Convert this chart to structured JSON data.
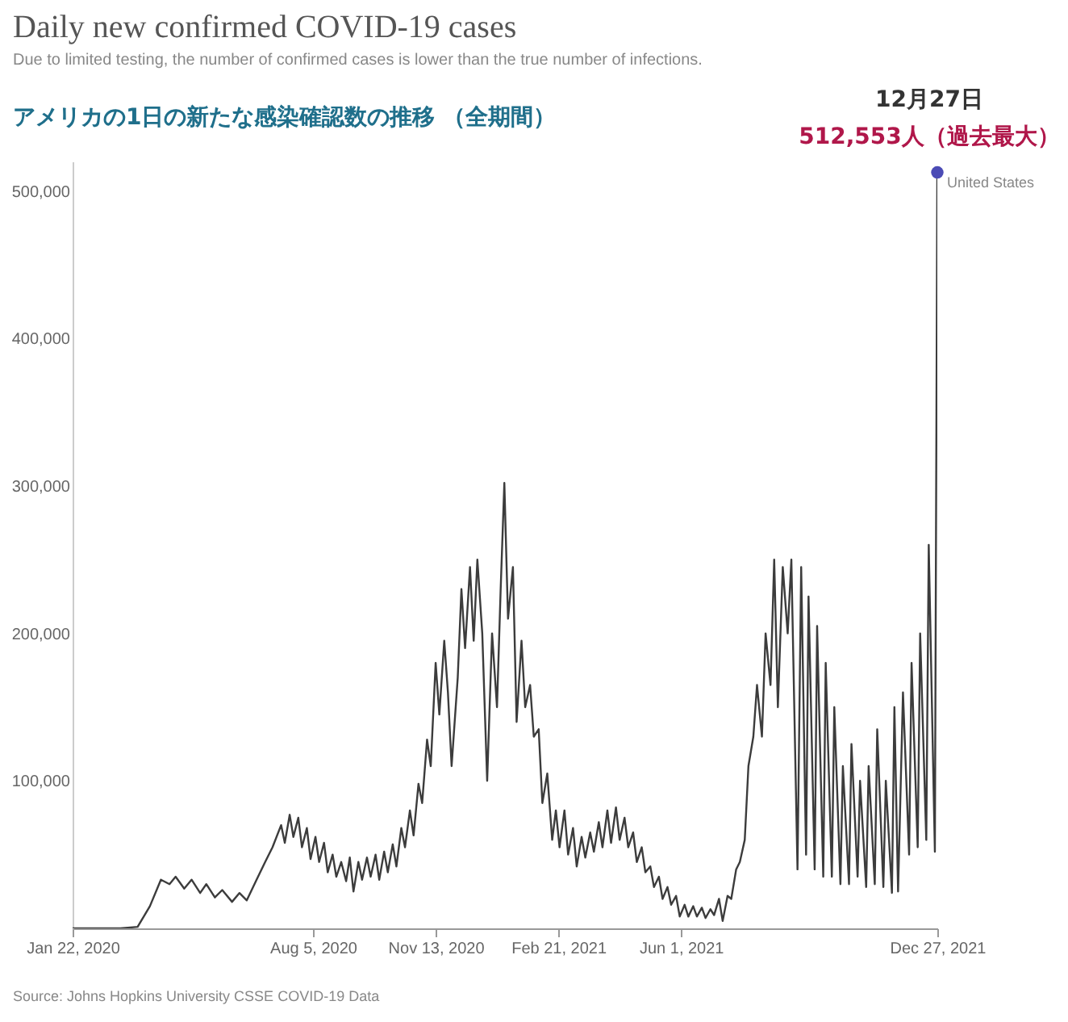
{
  "chart_data": {
    "type": "line",
    "title": "Daily new confirmed COVID-19 cases",
    "subtitle": "Due to limited testing, the number of confirmed cases is lower than the true number of infections.",
    "annotations": [
      "アメリカの1日の新たな感染確認数の推移 （全期間）",
      {
        "text": "12月27日",
        "x": "2021-12-27",
        "y": 512553
      },
      {
        "text": "512,553人（過去最大）",
        "x": "2021-12-27",
        "y": 512553
      },
      "Source: Johns Hopkins University CSSE COVID-19 Data"
    ],
    "xlim": [
      "2020-01-22",
      "2021-12-27"
    ],
    "xticks": [
      {
        "value": "2020-01-22",
        "label": "Jan 22, 2020"
      },
      {
        "value": "2020-08-05",
        "label": "Aug 5, 2020"
      },
      {
        "value": "2020-11-13",
        "label": "Nov 13, 2020"
      },
      {
        "value": "2021-02-21",
        "label": "Feb 21, 2021"
      },
      {
        "value": "2021-06-01",
        "label": "Jun 1, 2021"
      },
      {
        "value": "2021-12-27",
        "label": "Dec 27, 2021"
      }
    ],
    "ylim": [
      0,
      520000
    ],
    "yticks": [
      {
        "value": 100000,
        "label": "100,000"
      },
      {
        "value": 200000,
        "label": "200,000"
      },
      {
        "value": 300000,
        "label": "300,000"
      },
      {
        "value": 400000,
        "label": "400,000"
      },
      {
        "value": 500000,
        "label": "500,000"
      }
    ],
    "grid": false,
    "series": [
      {
        "name": "United States",
        "color": "#3c3c3c",
        "x": [
          "2020-01-22",
          "2020-03-01",
          "2020-03-15",
          "2020-03-25",
          "2020-04-03",
          "2020-04-10",
          "2020-04-15",
          "2020-04-22",
          "2020-04-28",
          "2020-05-05",
          "2020-05-10",
          "2020-05-17",
          "2020-05-23",
          "2020-05-31",
          "2020-06-06",
          "2020-06-12",
          "2020-06-20",
          "2020-06-27",
          "2020-07-03",
          "2020-07-10",
          "2020-07-13",
          "2020-07-17",
          "2020-07-20",
          "2020-07-24",
          "2020-07-27",
          "2020-07-31",
          "2020-08-03",
          "2020-08-07",
          "2020-08-10",
          "2020-08-14",
          "2020-08-17",
          "2020-08-21",
          "2020-08-24",
          "2020-08-28",
          "2020-09-01",
          "2020-09-04",
          "2020-09-07",
          "2020-09-11",
          "2020-09-14",
          "2020-09-18",
          "2020-09-21",
          "2020-09-25",
          "2020-09-28",
          "2020-10-02",
          "2020-10-05",
          "2020-10-09",
          "2020-10-12",
          "2020-10-16",
          "2020-10-19",
          "2020-10-23",
          "2020-10-26",
          "2020-10-30",
          "2020-11-02",
          "2020-11-06",
          "2020-11-09",
          "2020-11-13",
          "2020-11-16",
          "2020-11-20",
          "2020-11-23",
          "2020-11-26",
          "2020-12-01",
          "2020-12-04",
          "2020-12-07",
          "2020-12-11",
          "2020-12-14",
          "2020-12-17",
          "2020-12-21",
          "2020-12-25",
          "2020-12-29",
          "2021-01-02",
          "2021-01-05",
          "2021-01-08",
          "2021-01-11",
          "2021-01-15",
          "2021-01-18",
          "2021-01-22",
          "2021-01-25",
          "2021-01-29",
          "2021-02-01",
          "2021-02-05",
          "2021-02-08",
          "2021-02-12",
          "2021-02-16",
          "2021-02-19",
          "2021-02-22",
          "2021-02-26",
          "2021-03-01",
          "2021-03-05",
          "2021-03-08",
          "2021-03-12",
          "2021-03-15",
          "2021-03-19",
          "2021-03-22",
          "2021-03-26",
          "2021-03-29",
          "2021-04-02",
          "2021-04-05",
          "2021-04-09",
          "2021-04-12",
          "2021-04-16",
          "2021-04-19",
          "2021-04-23",
          "2021-04-26",
          "2021-04-30",
          "2021-05-03",
          "2021-05-07",
          "2021-05-10",
          "2021-05-14",
          "2021-05-17",
          "2021-05-21",
          "2021-05-24",
          "2021-05-28",
          "2021-05-31",
          "2021-06-04",
          "2021-06-07",
          "2021-06-11",
          "2021-06-14",
          "2021-06-18",
          "2021-06-21",
          "2021-06-25",
          "2021-06-28",
          "2021-07-02",
          "2021-07-05",
          "2021-07-09",
          "2021-07-12",
          "2021-07-16",
          "2021-07-19",
          "2021-07-23",
          "2021-07-26",
          "2021-07-30",
          "2021-08-02",
          "2021-08-06",
          "2021-08-09",
          "2021-08-13",
          "2021-08-16",
          "2021-08-19",
          "2021-08-23",
          "2021-08-27",
          "2021-08-30",
          "2021-09-04",
          "2021-09-07",
          "2021-09-11",
          "2021-09-13",
          "2021-09-18",
          "2021-09-20",
          "2021-09-25",
          "2021-09-27",
          "2021-10-02",
          "2021-10-04",
          "2021-10-09",
          "2021-10-11",
          "2021-10-16",
          "2021-10-18",
          "2021-10-23",
          "2021-10-25",
          "2021-10-30",
          "2021-11-01",
          "2021-11-06",
          "2021-11-08",
          "2021-11-13",
          "2021-11-15",
          "2021-11-20",
          "2021-11-22",
          "2021-11-25",
          "2021-11-29",
          "2021-12-04",
          "2021-12-06",
          "2021-12-11",
          "2021-12-13",
          "2021-12-18",
          "2021-12-20",
          "2021-12-25",
          "2021-12-27"
        ],
        "values": [
          0,
          0,
          1000,
          15000,
          33000,
          30000,
          35000,
          27000,
          33000,
          24000,
          30000,
          21000,
          26000,
          18000,
          24000,
          19000,
          33000,
          45000,
          55000,
          70000,
          58000,
          77000,
          62000,
          75000,
          55000,
          68000,
          47000,
          62000,
          45000,
          58000,
          38000,
          50000,
          35000,
          45000,
          32000,
          48000,
          25000,
          45000,
          33000,
          48000,
          35000,
          50000,
          33000,
          52000,
          38000,
          57000,
          42000,
          68000,
          55000,
          80000,
          63000,
          98000,
          85000,
          128000,
          110000,
          180000,
          145000,
          195000,
          160000,
          110000,
          170000,
          230000,
          190000,
          245000,
          195000,
          250000,
          200000,
          100000,
          200000,
          150000,
          230000,
          302000,
          210000,
          245000,
          140000,
          195000,
          150000,
          165000,
          130000,
          135000,
          85000,
          105000,
          60000,
          80000,
          55000,
          80000,
          50000,
          68000,
          42000,
          62000,
          48000,
          65000,
          52000,
          72000,
          55000,
          80000,
          58000,
          82000,
          60000,
          75000,
          55000,
          65000,
          45000,
          55000,
          38000,
          42000,
          28000,
          35000,
          20000,
          28000,
          16000,
          22000,
          8000,
          16000,
          8000,
          15000,
          8000,
          14000,
          7000,
          13000,
          9000,
          20000,
          5000,
          22000,
          20000,
          40000,
          45000,
          60000,
          110000,
          130000,
          165000,
          130000,
          200000,
          165000,
          250000,
          150000,
          245000,
          200000,
          250000,
          40000,
          245000,
          50000,
          225000,
          40000,
          205000,
          35000,
          180000,
          35000,
          150000,
          30000,
          110000,
          30000,
          125000,
          35000,
          100000,
          28000,
          110000,
          30000,
          135000,
          28000,
          100000,
          24000,
          150000,
          25000,
          160000,
          50000,
          180000,
          55000,
          200000,
          60000,
          260000,
          52000,
          512553
        ]
      }
    ]
  }
}
